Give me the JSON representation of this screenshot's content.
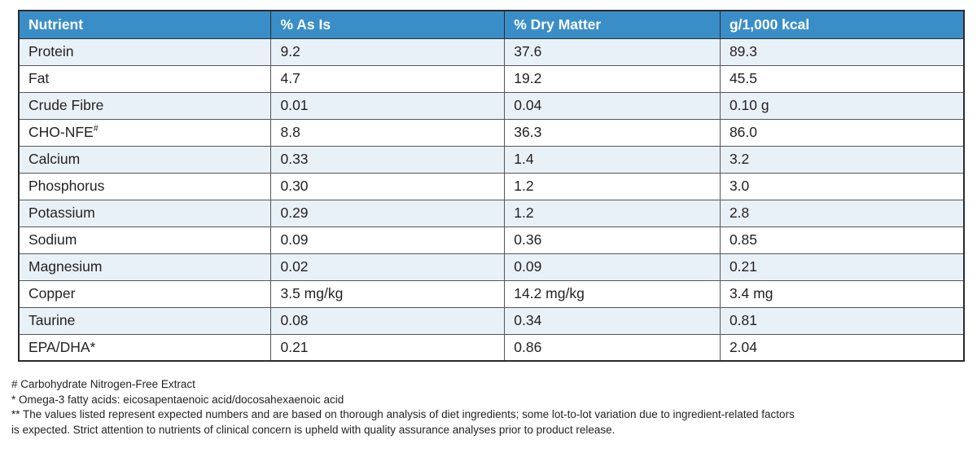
{
  "table": {
    "columns": [
      "Nutrient",
      "% As Is",
      "% Dry Matter",
      "g/1,000 kcal"
    ],
    "rows": [
      {
        "nutrient": "Protein",
        "sup": "",
        "as_is": "9.2",
        "dry_matter": "37.6",
        "per_1000_kcal": "89.3"
      },
      {
        "nutrient": "Fat",
        "sup": "",
        "as_is": "4.7",
        "dry_matter": "19.2",
        "per_1000_kcal": "45.5"
      },
      {
        "nutrient": "Crude Fibre",
        "sup": "",
        "as_is": "0.01",
        "dry_matter": "0.04",
        "per_1000_kcal": "0.10 g"
      },
      {
        "nutrient": "CHO-NFE",
        "sup": "#",
        "as_is": "8.8",
        "dry_matter": "36.3",
        "per_1000_kcal": "86.0"
      },
      {
        "nutrient": "Calcium",
        "sup": "",
        "as_is": "0.33",
        "dry_matter": "1.4",
        "per_1000_kcal": "3.2"
      },
      {
        "nutrient": "Phosphorus",
        "sup": "",
        "as_is": "0.30",
        "dry_matter": "1.2",
        "per_1000_kcal": "3.0"
      },
      {
        "nutrient": "Potassium",
        "sup": "",
        "as_is": "0.29",
        "dry_matter": "1.2",
        "per_1000_kcal": "2.8"
      },
      {
        "nutrient": "Sodium",
        "sup": "",
        "as_is": "0.09",
        "dry_matter": "0.36",
        "per_1000_kcal": "0.85"
      },
      {
        "nutrient": "Magnesium",
        "sup": "",
        "as_is": "0.02",
        "dry_matter": "0.09",
        "per_1000_kcal": "0.21"
      },
      {
        "nutrient": "Copper",
        "sup": "",
        "as_is": "3.5 mg/kg",
        "dry_matter": "14.2 mg/kg",
        "per_1000_kcal": "3.4 mg"
      },
      {
        "nutrient": "Taurine",
        "sup": "",
        "as_is": "0.08",
        "dry_matter": "0.34",
        "per_1000_kcal": "0.81"
      },
      {
        "nutrient": "EPA/DHA*",
        "sup": "",
        "as_is": "0.21",
        "dry_matter": "0.86",
        "per_1000_kcal": "2.04"
      }
    ]
  },
  "footnotes": {
    "lines": [
      "# Carbohydrate Nitrogen-Free Extract",
      "* Omega-3 fatty acids: eicosapentaenoic acid/docosahexaenoic acid",
      "** The values listed represent expected numbers and are based on thorough analysis of diet ingredients; some lot-to-lot variation due to ingredient-related factors is expected. Strict attention to nutrients of clinical concern is upheld with quality assurance analyses prior to product release."
    ]
  },
  "colors": {
    "header_bg": "#3A8EC8",
    "header_text": "#FFFFFF",
    "row_alt_bg": "#E9F1F8",
    "row_bg": "#FFFFFF",
    "border_outer": "#2A2B2E",
    "border_inner": "#54565A",
    "cell_text": "#231F20"
  }
}
